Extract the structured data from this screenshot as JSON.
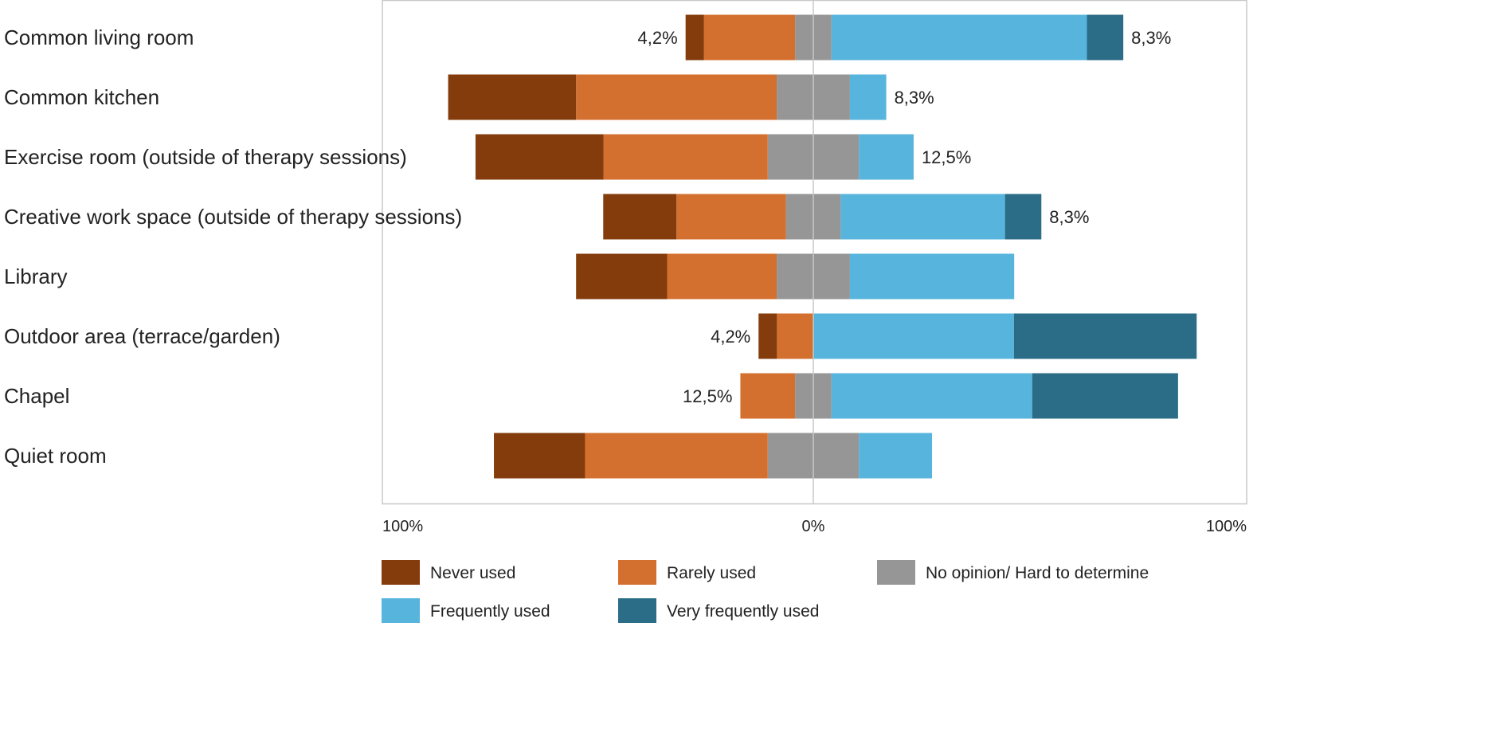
{
  "chart_data": {
    "type": "bar",
    "subtype": "diverging-stacked-horizontal",
    "categories": [
      "Common living room",
      "Common kitchen",
      "Exercise room (outside of therapy sessions)",
      "Creative work space (outside of therapy sessions)",
      "Library",
      "Outdoor area (terrace/garden)",
      "Chapel",
      "Quiet room"
    ],
    "series": [
      {
        "name": "Never used",
        "color": "#843C0C",
        "side": "negative",
        "values": [
          4.2,
          29.2,
          29.2,
          16.7,
          20.8,
          4.2,
          0,
          20.8
        ]
      },
      {
        "name": "Rarely used",
        "color": "#D4702F",
        "side": "negative",
        "values": [
          20.8,
          45.8,
          37.5,
          25.0,
          25.0,
          8.3,
          12.5,
          41.7
        ]
      },
      {
        "name": "No opinion/ Hard to determine",
        "color": "#969696",
        "side": "center",
        "values": [
          8.3,
          16.7,
          20.8,
          12.5,
          16.7,
          0,
          8.3,
          20.8
        ]
      },
      {
        "name": "Frequently used",
        "color": "#57B4DC",
        "side": "positive",
        "values": [
          58.3,
          8.3,
          12.5,
          37.5,
          37.5,
          45.8,
          45.8,
          16.7
        ]
      },
      {
        "name": "Very frequently used",
        "color": "#2B6C87",
        "side": "positive",
        "values": [
          8.3,
          0,
          0,
          8.3,
          0,
          41.7,
          33.3,
          0
        ]
      }
    ],
    "data_labels": [
      {
        "left": "4,2%",
        "right": "8,3%"
      },
      {
        "left": "",
        "right": "8,3%"
      },
      {
        "left": "",
        "right": "12,5%"
      },
      {
        "left": "",
        "right": "8,3%"
      },
      {
        "left": "",
        "right": ""
      },
      {
        "left": "4,2%",
        "right": ""
      },
      {
        "left": "12,5%",
        "right": ""
      },
      {
        "left": "",
        "right": ""
      }
    ],
    "x_ticks": [
      "100%",
      "0%",
      "100%"
    ],
    "xlim": [
      -100,
      100
    ],
    "title": "",
    "xlabel": "",
    "ylabel": "",
    "grid": false,
    "legend_placement": "bottom"
  }
}
